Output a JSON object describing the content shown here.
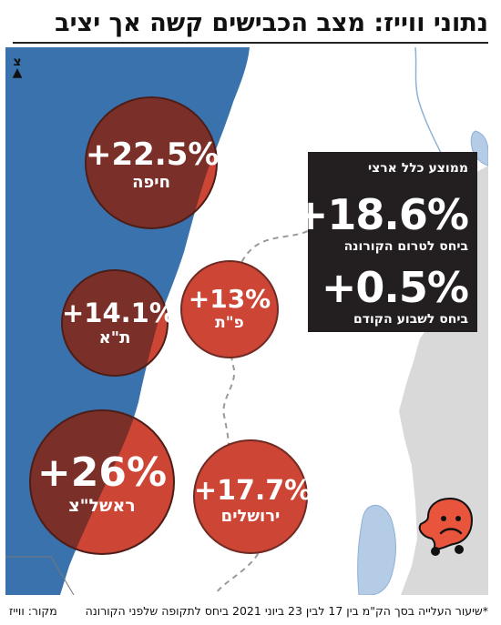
{
  "title": "נתוני ווייז: מצב הכבישים קשה אך יציב",
  "north_label": "צ",
  "summary": {
    "heading": "ממוצע כלל ארצי",
    "vs_pre_covid_value": "+18.6%",
    "vs_pre_covid_label": "ביחס לטרום הקורונה",
    "vs_last_week_value": "+0.5%",
    "vs_last_week_label": "ביחס לשבוע הקודם"
  },
  "cities": [
    {
      "name": "חיפה",
      "value_text": "+22.5%",
      "value": 22.5
    },
    {
      "name": "פ\"ת",
      "value_text": "+13%",
      "value": 13
    },
    {
      "name": "ת\"א",
      "value_text": "+14.1%",
      "value": 14.1
    },
    {
      "name": "ראשל\"צ",
      "value_text": "+26%",
      "value": 26
    },
    {
      "name": "ירושלים",
      "value_text": "+17.7%",
      "value": 17.7
    }
  ],
  "footnote": "*שיעור העלייה בסך הק\"מ בין 17 לבין 23 ביוני 2021 ביחס לתקופה שלפני הקורונה",
  "source": "מקור: ווייז",
  "colors": {
    "sea": "#3a72ad",
    "land": "#ffffff",
    "east_land": "#d9d9d9",
    "lake": "#b5cce6",
    "bubble_dark": "#7a3028",
    "bubble_light": "#cc4535",
    "box": "#231f20",
    "waze_icon": "#e8543c"
  },
  "icon": "waze-sad-face-icon"
}
